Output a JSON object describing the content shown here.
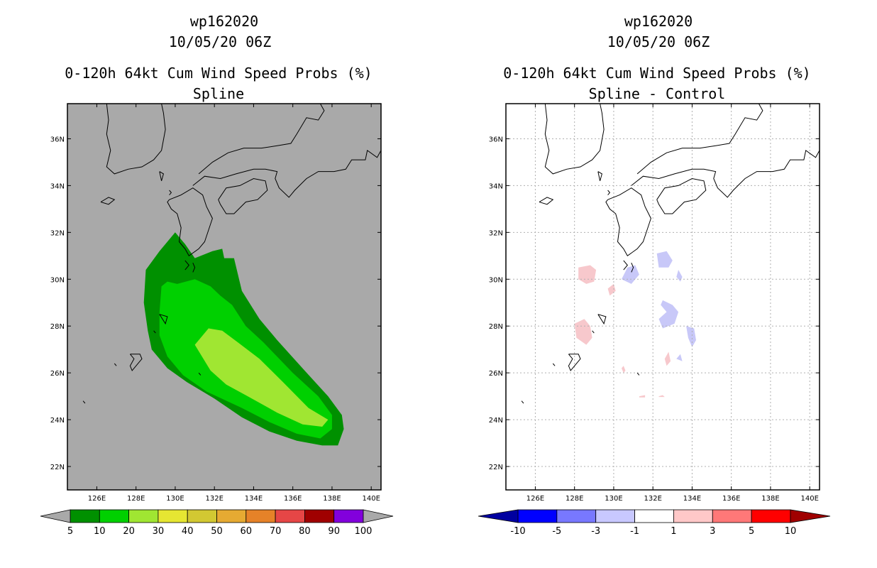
{
  "chart_data": [
    {
      "type": "map-contour",
      "storm_id": "wp162020",
      "date": "10/05/20 06Z",
      "title": "0-120h 64kt Cum Wind Speed Probs (%)",
      "subtitle": "Spline",
      "x_ticks": [
        "126E",
        "128E",
        "130E",
        "132E",
        "134E",
        "136E",
        "138E",
        "140E"
      ],
      "y_ticks": [
        "36N",
        "34N",
        "32N",
        "30N",
        "28N",
        "26N",
        "24N",
        "22N"
      ],
      "lon_range": [
        124.5,
        140.5
      ],
      "lat_range": [
        21,
        37.5
      ],
      "grid": false,
      "background_color": "#a9a9a9",
      "colorbar": {
        "labels": [
          "5",
          "10",
          "20",
          "30",
          "40",
          "50",
          "60",
          "70",
          "80",
          "90",
          "100"
        ],
        "colors": [
          "#009000",
          "#00d000",
          "#a0e632",
          "#e6e632",
          "#d2c832",
          "#e6aa32",
          "#e68228",
          "#e64646",
          "#a00000",
          "#8200dc"
        ]
      },
      "contours": [
        {
          "level": "5-10",
          "color": "#009000",
          "polygon": [
            [
              130,
              32
            ],
            [
              130.5,
              31.5
            ],
            [
              131,
              30.9
            ],
            [
              131.9,
              31.2
            ],
            [
              132.4,
              31.3
            ],
            [
              132.5,
              30.9
            ],
            [
              133,
              30.9
            ],
            [
              133.4,
              29.5
            ],
            [
              134.3,
              28.3
            ],
            [
              135.2,
              27.4
            ],
            [
              136.6,
              26.1
            ],
            [
              137.8,
              25
            ],
            [
              138.5,
              24.2
            ],
            [
              138.6,
              23.6
            ],
            [
              138.3,
              22.9
            ],
            [
              137.5,
              22.9
            ],
            [
              136.2,
              23.1
            ],
            [
              134.8,
              23.5
            ],
            [
              133.4,
              24.1
            ],
            [
              132,
              24.9
            ],
            [
              130.6,
              25.6
            ],
            [
              129.6,
              26.2
            ],
            [
              128.8,
              27
            ],
            [
              128.6,
              27.8
            ],
            [
              128.4,
              29
            ],
            [
              128.5,
              30.4
            ],
            [
              129.2,
              31.2
            ]
          ]
        },
        {
          "level": "10-20",
          "color": "#00d000",
          "polygon": [
            [
              129.3,
              29.7
            ],
            [
              129.6,
              29.9
            ],
            [
              130.1,
              29.8
            ],
            [
              131,
              30
            ],
            [
              131.8,
              29.7
            ],
            [
              132.3,
              29.3
            ],
            [
              132.9,
              28.9
            ],
            [
              133.6,
              28
            ],
            [
              134.5,
              27.3
            ],
            [
              136,
              26
            ],
            [
              137.3,
              25
            ],
            [
              138,
              24.2
            ],
            [
              138,
              23.6
            ],
            [
              137.4,
              23.2
            ],
            [
              136.2,
              23.4
            ],
            [
              134.8,
              23.9
            ],
            [
              133.4,
              24.5
            ],
            [
              131.6,
              25.2
            ],
            [
              130.4,
              25.9
            ],
            [
              129.6,
              26.7
            ],
            [
              129.2,
              27.6
            ],
            [
              129.2,
              28.6
            ]
          ]
        },
        {
          "level": "20-30",
          "color": "#a0e632",
          "polygon": [
            [
              131,
              27.2
            ],
            [
              131.7,
              27.9
            ],
            [
              132.4,
              27.8
            ],
            [
              133.2,
              27.3
            ],
            [
              134.3,
              26.6
            ],
            [
              135.5,
              25.6
            ],
            [
              136.8,
              24.5
            ],
            [
              137.8,
              24
            ],
            [
              137.5,
              23.7
            ],
            [
              136.5,
              23.8
            ],
            [
              135.2,
              24.3
            ],
            [
              133.7,
              25
            ],
            [
              132.6,
              25.5
            ],
            [
              131.8,
              26.1
            ]
          ]
        }
      ]
    },
    {
      "type": "map-contour",
      "storm_id": "wp162020",
      "date": "10/05/20 06Z",
      "title": "0-120h 64kt Cum Wind Speed Probs (%)",
      "subtitle": "Spline - Control",
      "x_ticks": [
        "126E",
        "128E",
        "130E",
        "132E",
        "134E",
        "136E",
        "138E",
        "140E"
      ],
      "y_ticks": [
        "36N",
        "34N",
        "32N",
        "30N",
        "28N",
        "26N",
        "24N",
        "22N"
      ],
      "lon_range": [
        124.5,
        140.5
      ],
      "lat_range": [
        21,
        37.5
      ],
      "grid": true,
      "background_color": "#ffffff",
      "colorbar": {
        "labels": [
          "-10",
          "-5",
          "-3",
          "-1",
          "1",
          "3",
          "5",
          "10"
        ],
        "colors": [
          "#0000a0",
          "#0000ff",
          "#7878ff",
          "#c8c8ff",
          "#ffffff",
          "#ffc8c8",
          "#ff7878",
          "#ff0000",
          "#a00000"
        ]
      },
      "contours": [
        {
          "level": "1-3",
          "color": "#f7c8cc",
          "polygon": [
            [
              128.2,
              30.5
            ],
            [
              128.8,
              30.6
            ],
            [
              129.1,
              30.4
            ],
            [
              129,
              29.9
            ],
            [
              128.6,
              29.8
            ],
            [
              128.2,
              30
            ]
          ]
        },
        {
          "level": "1-3",
          "color": "#f7c8cc",
          "polygon": [
            [
              128,
              28.1
            ],
            [
              128.5,
              28.3
            ],
            [
              128.8,
              28
            ],
            [
              128.9,
              27.5
            ],
            [
              128.6,
              27.2
            ],
            [
              128.1,
              27.5
            ]
          ]
        },
        {
          "level": "1-3",
          "color": "#f7c8cc",
          "polygon": [
            [
              129.7,
              29.6
            ],
            [
              130,
              29.8
            ],
            [
              130.1,
              29.5
            ],
            [
              129.8,
              29.3
            ]
          ]
        },
        {
          "level": "1-3",
          "color": "#f7c8cc",
          "polygon": [
            [
              132.6,
              26.6
            ],
            [
              132.8,
              26.9
            ],
            [
              132.9,
              26.5
            ],
            [
              132.7,
              26.3
            ]
          ]
        },
        {
          "level": "1-3",
          "color": "#f7c8cc",
          "polygon": [
            [
              130.4,
              26.2
            ],
            [
              130.5,
              26.3
            ],
            [
              130.6,
              26.1
            ],
            [
              130.5,
              26
            ]
          ]
        },
        {
          "level": "1-3",
          "color": "#f7c8cc",
          "polygon": [
            [
              131.3,
              25
            ],
            [
              131.6,
              25.05
            ],
            [
              131.6,
              24.95
            ],
            [
              131.3,
              24.95
            ]
          ]
        },
        {
          "level": "1-3",
          "color": "#f7c8cc",
          "polygon": [
            [
              132.3,
              25
            ],
            [
              132.5,
              25.05
            ],
            [
              132.6,
              24.97
            ],
            [
              132.3,
              24.97
            ]
          ]
        },
        {
          "level": "-1--3",
          "color": "#c8c8f8",
          "polygon": [
            [
              132.2,
              31.1
            ],
            [
              132.7,
              31.2
            ],
            [
              133,
              30.8
            ],
            [
              132.8,
              30.5
            ],
            [
              132.3,
              30.5
            ]
          ]
        },
        {
          "level": "-1--3",
          "color": "#c8c8f8",
          "polygon": [
            [
              130.7,
              30.5
            ],
            [
              131.1,
              30.6
            ],
            [
              131.3,
              30.2
            ],
            [
              130.9,
              29.8
            ],
            [
              130.4,
              30
            ]
          ]
        },
        {
          "level": "-1--3",
          "color": "#c8c8f8",
          "polygon": [
            [
              132.5,
              29.1
            ],
            [
              133,
              28.9
            ],
            [
              133.3,
              28.6
            ],
            [
              133.1,
              28.1
            ],
            [
              132.5,
              27.9
            ],
            [
              132.3,
              28.3
            ],
            [
              132.7,
              28.6
            ],
            [
              132.4,
              28.9
            ]
          ]
        },
        {
          "level": "-1--3",
          "color": "#c8c8f8",
          "polygon": [
            [
              133.7,
              28
            ],
            [
              134.1,
              27.9
            ],
            [
              134.2,
              27.4
            ],
            [
              134,
              27.1
            ],
            [
              133.8,
              27.5
            ]
          ]
        },
        {
          "level": "-1--3",
          "color": "#c8c8f8",
          "polygon": [
            [
              133.3,
              30.4
            ],
            [
              133.5,
              30.1
            ],
            [
              133.4,
              29.9
            ],
            [
              133.2,
              30.1
            ]
          ]
        },
        {
          "level": "-1--3",
          "color": "#c8c8f8",
          "polygon": [
            [
              133.2,
              26.6
            ],
            [
              133.4,
              26.8
            ],
            [
              133.5,
              26.5
            ]
          ]
        }
      ]
    }
  ]
}
